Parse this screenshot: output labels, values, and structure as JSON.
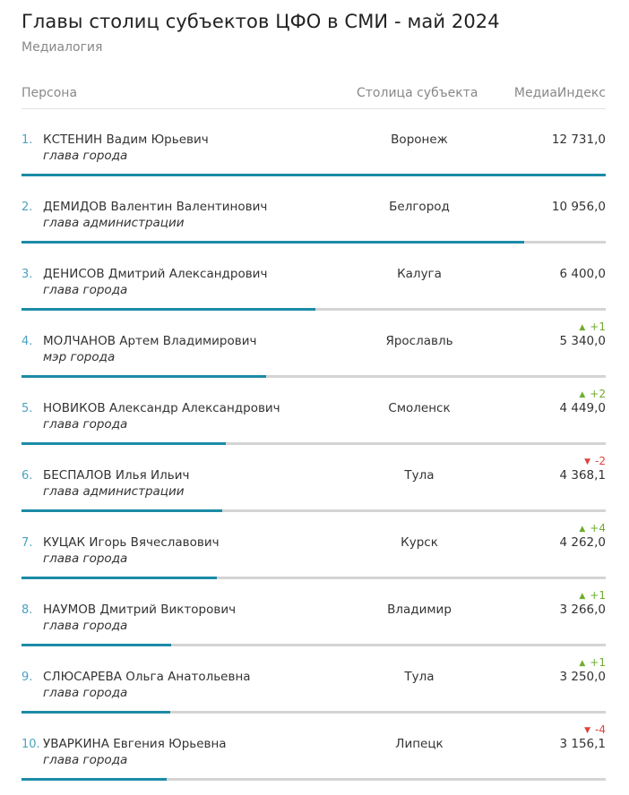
{
  "title": "Главы столиц субъектов ЦФО в СМИ - май 2024",
  "subtitle": "Медиалогия",
  "columns": {
    "person": "Персона",
    "city": "Столица субъекта",
    "index": "МедиаИндекс"
  },
  "colors": {
    "accent": "#1b8ba6",
    "rank": "#4aa3c1",
    "up": "#6fad2f",
    "down": "#e0433e",
    "track": "#d4d4d4"
  },
  "rows": [
    {
      "rank": "1.",
      "name": "КСТЕНИН Вадим Юрьевич",
      "role": "глава города",
      "city": "Воронеж",
      "value": "12 731,0",
      "index_value": 12731.0,
      "change": "",
      "direction": ""
    },
    {
      "rank": "2.",
      "name": "ДЕМИДОВ Валентин Валентинович",
      "role": "глава администрации",
      "city": "Белгород",
      "value": "10 956,0",
      "index_value": 10956.0,
      "change": "",
      "direction": ""
    },
    {
      "rank": "3.",
      "name": "ДЕНИСОВ Дмитрий Александрович",
      "role": "глава города",
      "city": "Калуга",
      "value": "6 400,0",
      "index_value": 6400.0,
      "change": "",
      "direction": ""
    },
    {
      "rank": "4.",
      "name": "МОЛЧАНОВ Артем Владимирович",
      "role": "мэр города",
      "city": "Ярославль",
      "value": "5 340,0",
      "index_value": 5340.0,
      "change": "+1",
      "direction": "up"
    },
    {
      "rank": "5.",
      "name": "НОВИКОВ Александр Александрович",
      "role": "глава города",
      "city": "Смоленск",
      "value": "4 449,0",
      "index_value": 4449.0,
      "change": "+2",
      "direction": "up"
    },
    {
      "rank": "6.",
      "name": "БЕСПАЛОВ Илья Ильич",
      "role": "глава администрации",
      "city": "Тула",
      "value": "4 368,1",
      "index_value": 4368.1,
      "change": "-2",
      "direction": "down"
    },
    {
      "rank": "7.",
      "name": "КУЦАК Игорь Вячеславович",
      "role": "глава города",
      "city": "Курск",
      "value": "4 262,0",
      "index_value": 4262.0,
      "change": "+4",
      "direction": "up"
    },
    {
      "rank": "8.",
      "name": "НАУМОВ Дмитрий Викторович",
      "role": "глава города",
      "city": "Владимир",
      "value": "3 266,0",
      "index_value": 3266.0,
      "change": "+1",
      "direction": "up"
    },
    {
      "rank": "9.",
      "name": "СЛЮСАРЕВА Ольга Анатольевна",
      "role": "глава города",
      "city": "Тула",
      "value": "3 250,0",
      "index_value": 3250.0,
      "change": "+1",
      "direction": "up"
    },
    {
      "rank": "10.",
      "name": "УВАРКИНА Евгения Юрьевна",
      "role": "глава города",
      "city": "Липецк",
      "value": "3 156,1",
      "index_value": 3156.1,
      "change": "-4",
      "direction": "down"
    }
  ]
}
